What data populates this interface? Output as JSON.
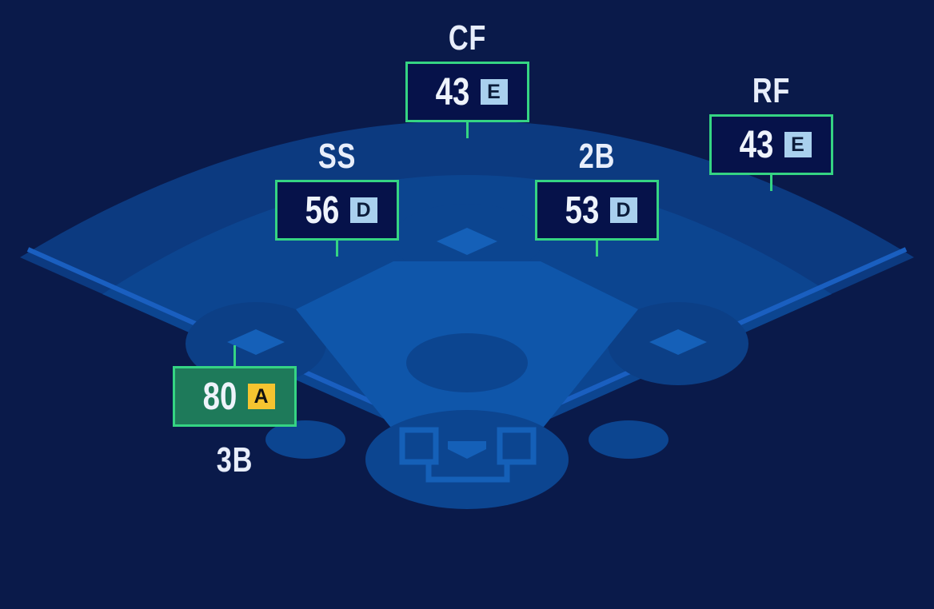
{
  "colors": {
    "background": "#0a1a4a",
    "outfield": "#0c3a80",
    "infield_grass": "#0c4590",
    "dirt": "#0f56aa",
    "accent_border": "#35d483",
    "grade_a": "#f5c430",
    "grade_default": "#a9d0ee",
    "highlight_box": "#1e7a5a"
  },
  "positions": [
    {
      "id": "cf",
      "label": "CF",
      "rating": "43",
      "grade": "E"
    },
    {
      "id": "ss",
      "label": "SS",
      "rating": "56",
      "grade": "D"
    },
    {
      "id": "2b",
      "label": "2B",
      "rating": "53",
      "grade": "D"
    },
    {
      "id": "rf",
      "label": "RF",
      "rating": "43",
      "grade": "E"
    },
    {
      "id": "3b",
      "label": "3B",
      "rating": "80",
      "grade": "A",
      "selected": true
    }
  ]
}
